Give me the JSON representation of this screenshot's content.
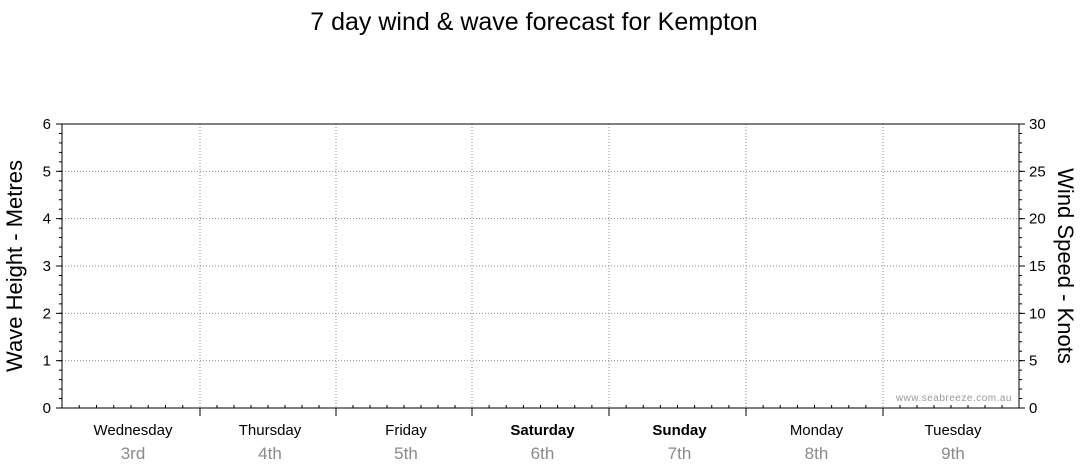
{
  "chart_data": {
    "type": "line",
    "title": "7 day wind & wave forecast for Kempton",
    "y_left_label": "Wave Height - Metres",
    "y_right_label": "Wind Speed - Knots",
    "y_left_range": [
      0,
      6
    ],
    "y_left_ticks": [
      0,
      1,
      2,
      3,
      4,
      5,
      6
    ],
    "y_right_range": [
      0,
      30
    ],
    "y_right_ticks": [
      0,
      5,
      10,
      15,
      20,
      25,
      30
    ],
    "days": [
      {
        "name": "Wednesday",
        "date": "3rd",
        "bold": false
      },
      {
        "name": "Thursday",
        "date": "4th",
        "bold": false
      },
      {
        "name": "Friday",
        "date": "5th",
        "bold": false
      },
      {
        "name": "Saturday",
        "date": "6th",
        "bold": true
      },
      {
        "name": "Sunday",
        "date": "7th",
        "bold": true
      },
      {
        "name": "Monday",
        "date": "8th",
        "bold": false
      },
      {
        "name": "Tuesday",
        "date": "9th",
        "bold": false
      }
    ],
    "grid": true,
    "series": [],
    "watermark": "www.seabreeze.com.au"
  }
}
